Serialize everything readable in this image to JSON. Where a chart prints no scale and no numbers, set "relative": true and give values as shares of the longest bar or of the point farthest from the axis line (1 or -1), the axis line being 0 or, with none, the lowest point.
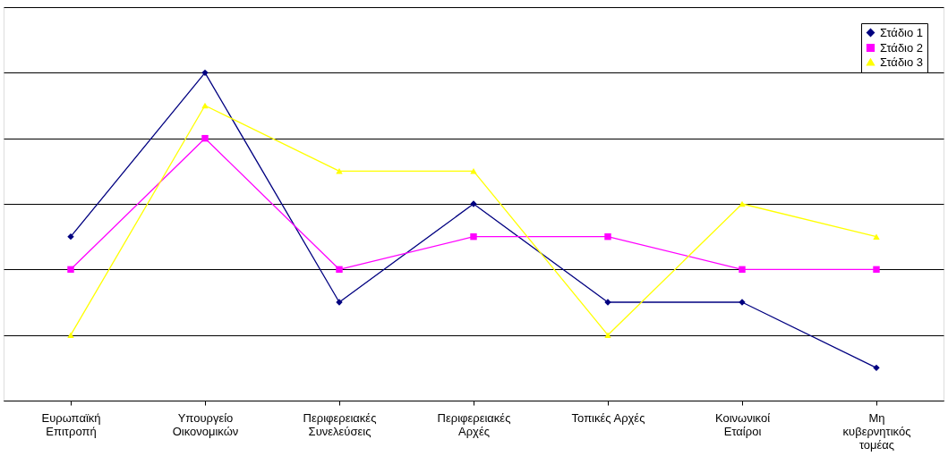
{
  "chart_data": {
    "type": "line",
    "relative": true,
    "grid": "y",
    "legend": "top right",
    "categories": [
      "Ευρωπαϊκή\nΕπιτροπή",
      "Υπουργείο\nΟικονομικών",
      "Περιφερειακές\nΣυνελεύσεις",
      "Περιφερειακές\nΑρχές",
      "Τοπικές Αρχές",
      "Κοινωνικοί\nΕταίροι",
      "Μη\nκυβερνητικός\nτομέας"
    ],
    "series": [
      {
        "name": "Στάδιο 1",
        "color": "#000080",
        "marker": "diamond",
        "values": [
          0.5,
          1,
          0.3,
          0.6,
          0.3,
          0.3,
          0.1
        ]
      },
      {
        "name": "Στάδιο 2",
        "color": "#ff00ff",
        "marker": "square",
        "values": [
          0.4,
          0.8,
          0.4,
          0.5,
          0.5,
          0.4,
          0.4
        ]
      },
      {
        "name": "Στάδιο 3",
        "color": "#ffff00",
        "marker": "triangle",
        "values": [
          0.2,
          0.9,
          0.7,
          0.7,
          0.2,
          0.6,
          0.5
        ]
      }
    ]
  }
}
